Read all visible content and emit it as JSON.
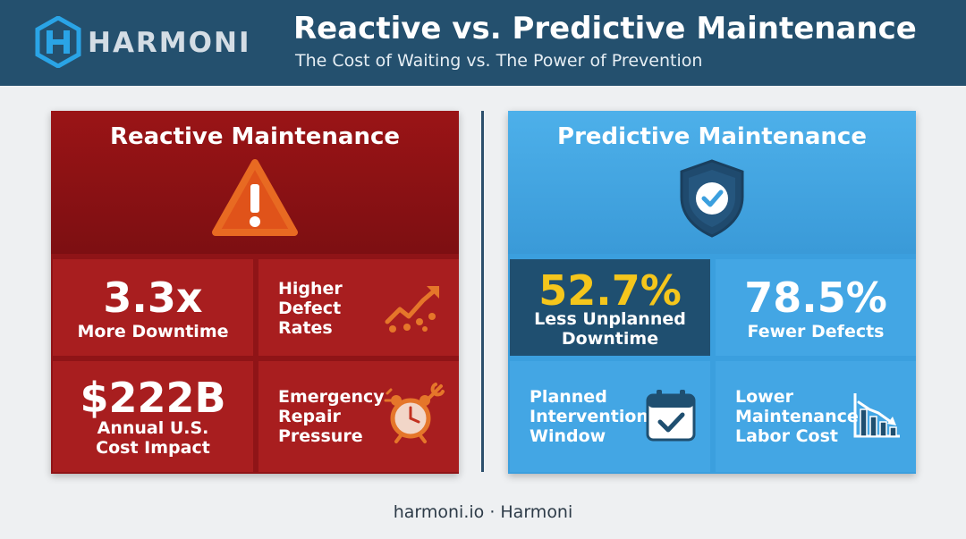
{
  "header": {
    "brand": "HARMONI",
    "title": "Reactive vs. Predictive Maintenance",
    "subtitle": "The Cost of Waiting vs. The Power of Prevention"
  },
  "reactive": {
    "title": "Reactive Maintenance",
    "icon": "warning-triangle-icon",
    "tiles": [
      {
        "value": "3.3x",
        "caption_1": "More Downtime"
      },
      {
        "line_1": "Higher",
        "line_2": "Defect",
        "line_3": "Rates",
        "icon": "rising-trend-icon"
      },
      {
        "value": "$222B",
        "caption_1": "Annual U.S.",
        "caption_2": "Cost Impact"
      },
      {
        "line_1": "Emergency",
        "line_2": "Repair",
        "line_3": "Pressure",
        "icon": "alarm-clock-wrench-icon"
      }
    ],
    "colors": {
      "panel": "#8f1417",
      "tile": "#a81e1f"
    }
  },
  "predictive": {
    "title": "Predictive Maintenance",
    "icon": "shield-check-icon",
    "tiles": [
      {
        "value": "52.7%",
        "caption_1": "Less Unplanned",
        "caption_2": "Downtime"
      },
      {
        "value": "78.5%",
        "caption_1": "Fewer Defects"
      },
      {
        "line_1": "Planned",
        "line_2": "Intervention",
        "line_3": "Window",
        "icon": "calendar-check-icon"
      },
      {
        "line_1": "Lower",
        "line_2": "Maintenance",
        "line_3": "Labor Cost",
        "icon": "declining-bar-chart-icon"
      }
    ],
    "colors": {
      "panel": "#3b9fde",
      "highlight": "#f5c61c",
      "dark_tile": "#1f4f70"
    }
  },
  "footer": {
    "text": "harmoni.io · Harmoni"
  }
}
